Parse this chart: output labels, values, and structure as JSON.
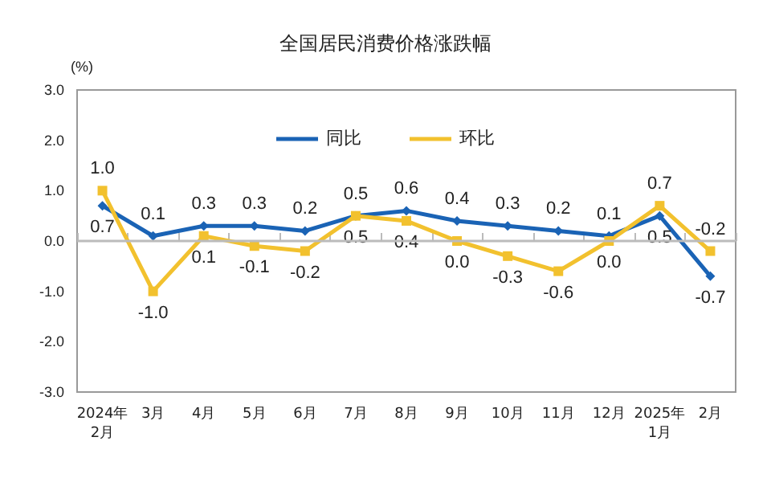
{
  "chart_data": {
    "type": "line",
    "title": "全国居民消费价格涨跌幅",
    "ylabel": "(%)",
    "categories": [
      "2024年\n2月",
      "3月",
      "4月",
      "5月",
      "6月",
      "7月",
      "8月",
      "9月",
      "10月",
      "11月",
      "12月",
      "2025年\n1月",
      "2月"
    ],
    "series": [
      {
        "name": "同比",
        "color": "#1a63b5",
        "marker": "diamond",
        "values": [
          0.7,
          0.1,
          0.3,
          0.3,
          0.2,
          0.5,
          0.6,
          0.4,
          0.3,
          0.2,
          0.1,
          0.5,
          -0.7
        ],
        "value_labels": [
          "0.7",
          "0.1",
          "0.3",
          "0.3",
          "0.2",
          "0.5",
          "0.6",
          "0.4",
          "0.3",
          "0.2",
          "0.1",
          "0.5",
          "-0.7"
        ]
      },
      {
        "name": "环比",
        "color": "#f2c12e",
        "marker": "square",
        "values": [
          1.0,
          -1.0,
          0.1,
          -0.1,
          -0.2,
          0.5,
          0.4,
          0.0,
          -0.3,
          -0.6,
          0.0,
          0.7,
          -0.2
        ],
        "value_labels": [
          "1.0",
          "-1.0",
          "0.1",
          "-0.1",
          "-0.2",
          "0.5",
          "0.4",
          "0.0",
          "-0.3",
          "-0.6",
          "0.0",
          "0.7",
          "-0.2"
        ]
      }
    ],
    "ylim": [
      -3,
      3
    ],
    "yticks": [
      {
        "value": -3,
        "label": "-3.0"
      },
      {
        "value": -2,
        "label": "-2.0"
      },
      {
        "value": -1,
        "label": "-1.0"
      },
      {
        "value": 0,
        "label": "0.0"
      },
      {
        "value": 1,
        "label": "1.0"
      },
      {
        "value": 2,
        "label": "2.0"
      },
      {
        "value": 3,
        "label": "3.0"
      }
    ],
    "ref_lines": [
      {
        "axis": "y",
        "value": 0,
        "color": "#bbbbbb"
      }
    ],
    "grid": false,
    "legend": "top",
    "line_style": "solid"
  }
}
